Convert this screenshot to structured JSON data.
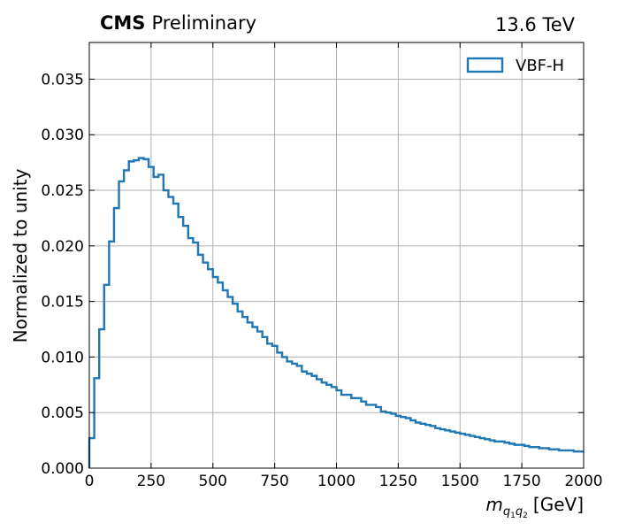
{
  "header": {
    "experiment": "CMS",
    "status": "Preliminary",
    "energy": "13.6 TeV"
  },
  "chart_data": {
    "type": "line",
    "style": "step-histogram",
    "xlabel_main": "m",
    "xlabel_sub": "q",
    "xlabel_subsub": [
      "1",
      "2"
    ],
    "xlabel_unit": "[GeV]",
    "ylabel": "Normalized to unity",
    "xlim": [
      0,
      2000
    ],
    "ylim": [
      0,
      0.0383
    ],
    "xticks": [
      0,
      250,
      500,
      750,
      1000,
      1250,
      1500,
      1750,
      2000
    ],
    "xtick_labels": [
      "0",
      "250",
      "500",
      "750",
      "1000",
      "1250",
      "1500",
      "1750",
      "2000"
    ],
    "yticks": [
      0,
      0.005,
      0.01,
      0.015,
      0.02,
      0.025,
      0.03,
      0.035
    ],
    "ytick_labels": [
      "0.000",
      "0.005",
      "0.010",
      "0.015",
      "0.020",
      "0.025",
      "0.030",
      "0.035"
    ],
    "grid": true,
    "legend_position": "top-right",
    "color": "#1f77b4",
    "bin_width": 20,
    "series": [
      {
        "name": "VBF-H",
        "values": [
          0.0027,
          0.0081,
          0.0125,
          0.0165,
          0.0204,
          0.0234,
          0.0258,
          0.0268,
          0.0276,
          0.0277,
          0.0279,
          0.0278,
          0.0271,
          0.0262,
          0.0264,
          0.025,
          0.0244,
          0.0238,
          0.0226,
          0.0218,
          0.0207,
          0.0203,
          0.0192,
          0.0185,
          0.0179,
          0.0172,
          0.0167,
          0.016,
          0.0154,
          0.0148,
          0.0141,
          0.0136,
          0.0131,
          0.0127,
          0.0123,
          0.0118,
          0.0112,
          0.011,
          0.0104,
          0.01,
          0.0096,
          0.0094,
          0.0092,
          0.0087,
          0.0085,
          0.0083,
          0.008,
          0.0077,
          0.0075,
          0.0073,
          0.007,
          0.0066,
          0.0066,
          0.0063,
          0.0063,
          0.006,
          0.0057,
          0.0057,
          0.0055,
          0.0051,
          0.005,
          0.0049,
          0.0047,
          0.0046,
          0.0045,
          0.0043,
          0.0041,
          0.004,
          0.0039,
          0.0038,
          0.0036,
          0.0035,
          0.0034,
          0.0033,
          0.0032,
          0.0031,
          0.003,
          0.0029,
          0.0028,
          0.0027,
          0.0026,
          0.0025,
          0.0024,
          0.0024,
          0.0023,
          0.0022,
          0.0021,
          0.0021,
          0.002,
          0.0019,
          0.0019,
          0.0018,
          0.0018,
          0.0017,
          0.0017,
          0.0016,
          0.0016,
          0.0016,
          0.0015,
          0.0015
        ]
      }
    ]
  }
}
